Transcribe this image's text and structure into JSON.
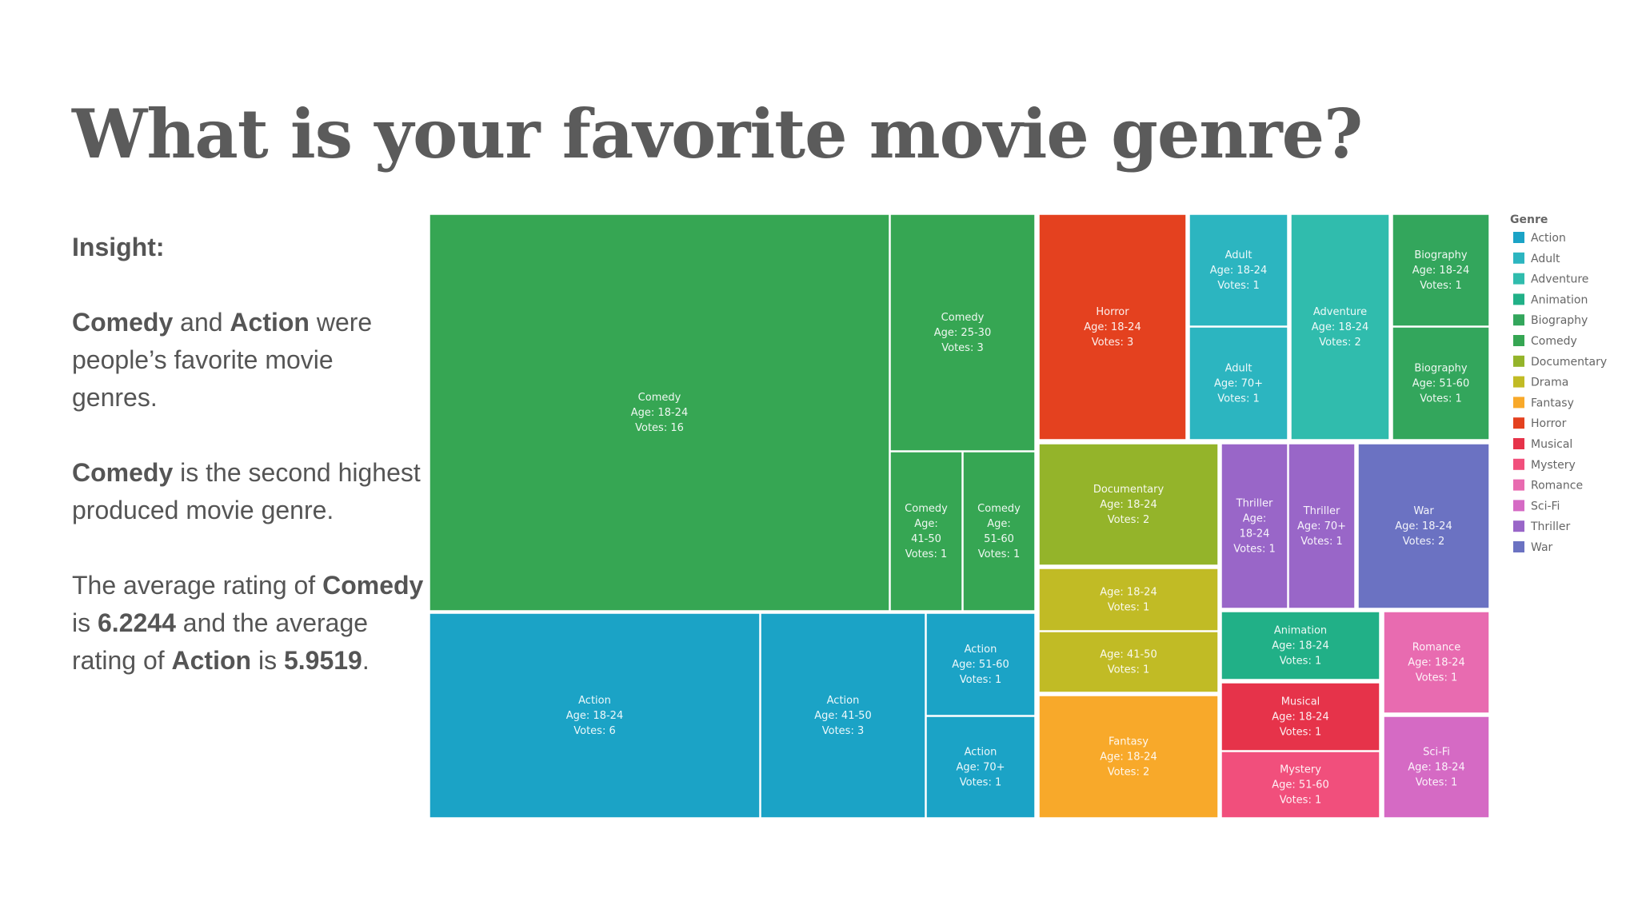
{
  "title": "What is your favorite movie genre?",
  "insight": {
    "heading": "Insight:",
    "p1": {
      "b1": "Comedy",
      "t1": " and ",
      "b2": "Action",
      "t2": " were people’s favorite movie genres."
    },
    "p2": {
      "b1": "Comedy",
      "t1": " is the second highest produced movie genre."
    },
    "p3": {
      "t0": "The average rating of ",
      "b1": "Comedy",
      "t1": " is ",
      "b2": "6.2244",
      "t2": " and the average rating of ",
      "b3": "Action",
      "t3": " is ",
      "b4": "5.9519",
      "t4": "."
    }
  },
  "chart_data": {
    "type": "treemap",
    "legend": {
      "title": "Genre",
      "items": [
        {
          "name": "Action",
          "color": "#1ba3c6"
        },
        {
          "name": "Adult",
          "color": "#2cb5c0"
        },
        {
          "name": "Adventure",
          "color": "#30bcad"
        },
        {
          "name": "Animation",
          "color": "#21b087"
        },
        {
          "name": "Biography",
          "color": "#33a65c"
        },
        {
          "name": "Comedy",
          "color": "#36a653"
        },
        {
          "name": "Documentary",
          "color": "#94b42a"
        },
        {
          "name": "Drama",
          "color": "#c1bb25"
        },
        {
          "name": "Fantasy",
          "color": "#f8a92a"
        },
        {
          "name": "Horror",
          "color": "#e4411f"
        },
        {
          "name": "Musical",
          "color": "#e6334a"
        },
        {
          "name": "Mystery",
          "color": "#f14f7c"
        },
        {
          "name": "Romance",
          "color": "#e86bb0"
        },
        {
          "name": "Sci-Fi",
          "color": "#d56ac4"
        },
        {
          "name": "Thriller",
          "color": "#9966c8"
        },
        {
          "name": "War",
          "color": "#6b72c2"
        }
      ]
    },
    "cells": [
      {
        "genre": "Comedy",
        "lines": [
          "Comedy",
          "Age: 18-24",
          "Votes: 16"
        ],
        "votes": 16
      },
      {
        "genre": "Comedy",
        "lines": [
          "Comedy",
          "Age: 25-30",
          "Votes: 3"
        ],
        "votes": 3
      },
      {
        "genre": "Comedy",
        "lines": [
          "Comedy",
          "Age:",
          "41-50",
          "Votes: 1"
        ],
        "votes": 1
      },
      {
        "genre": "Comedy",
        "lines": [
          "Comedy",
          "Age:",
          "51-60",
          "Votes: 1"
        ],
        "votes": 1
      },
      {
        "genre": "Action",
        "lines": [
          "Action",
          "Age: 18-24",
          "Votes: 6"
        ],
        "votes": 6
      },
      {
        "genre": "Action",
        "lines": [
          "Action",
          "Age: 41-50",
          "Votes: 3"
        ],
        "votes": 3
      },
      {
        "genre": "Action",
        "lines": [
          "Action",
          "Age: 51-60",
          "Votes: 1"
        ],
        "votes": 1
      },
      {
        "genre": "Action",
        "lines": [
          "Action",
          "Age: 70+",
          "Votes: 1"
        ],
        "votes": 1
      },
      {
        "genre": "Horror",
        "lines": [
          "Horror",
          "Age: 18-24",
          "Votes: 3"
        ],
        "votes": 3
      },
      {
        "genre": "Adult",
        "lines": [
          "Adult",
          "Age: 18-24",
          "Votes: 1"
        ],
        "votes": 1
      },
      {
        "genre": "Adult",
        "lines": [
          "Adult",
          "Age: 70+",
          "Votes: 1"
        ],
        "votes": 1
      },
      {
        "genre": "Adventure",
        "lines": [
          "Adventure",
          "Age: 18-24",
          "Votes: 2"
        ],
        "votes": 2
      },
      {
        "genre": "Biography",
        "lines": [
          "Biography",
          "Age: 18-24",
          "Votes: 1"
        ],
        "votes": 1
      },
      {
        "genre": "Biography",
        "lines": [
          "Biography",
          "Age: 51-60",
          "Votes: 1"
        ],
        "votes": 1
      },
      {
        "genre": "Documentary",
        "lines": [
          "Documentary",
          "Age: 18-24",
          "Votes: 2"
        ],
        "votes": 2
      },
      {
        "genre": "Drama",
        "lines": [
          "Age: 18-24",
          "Votes: 1"
        ],
        "votes": 1
      },
      {
        "genre": "Drama",
        "lines": [
          "Age: 41-50",
          "Votes: 1"
        ],
        "votes": 1
      },
      {
        "genre": "Fantasy",
        "lines": [
          "Fantasy",
          "Age: 18-24",
          "Votes: 2"
        ],
        "votes": 2
      },
      {
        "genre": "Thriller",
        "lines": [
          "Thriller",
          "Age:",
          "18-24",
          "Votes: 1"
        ],
        "votes": 1
      },
      {
        "genre": "Thriller",
        "lines": [
          "Thriller",
          "Age: 70+",
          "Votes: 1"
        ],
        "votes": 1
      },
      {
        "genre": "War",
        "lines": [
          "War",
          "Age: 18-24",
          "Votes: 2"
        ],
        "votes": 2
      },
      {
        "genre": "Animation",
        "lines": [
          "Animation",
          "Age: 18-24",
          "Votes: 1"
        ],
        "votes": 1
      },
      {
        "genre": "Musical",
        "lines": [
          "Musical",
          "Age: 18-24",
          "Votes: 1"
        ],
        "votes": 1
      },
      {
        "genre": "Mystery",
        "lines": [
          "Mystery",
          "Age: 51-60",
          "Votes: 1"
        ],
        "votes": 1
      },
      {
        "genre": "Romance",
        "lines": [
          "Romance",
          "Age: 18-24",
          "Votes: 1"
        ],
        "votes": 1
      },
      {
        "genre": "Sci-Fi",
        "lines": [
          "Sci-Fi",
          "Age: 18-24",
          "Votes: 1"
        ],
        "votes": 1
      }
    ]
  }
}
